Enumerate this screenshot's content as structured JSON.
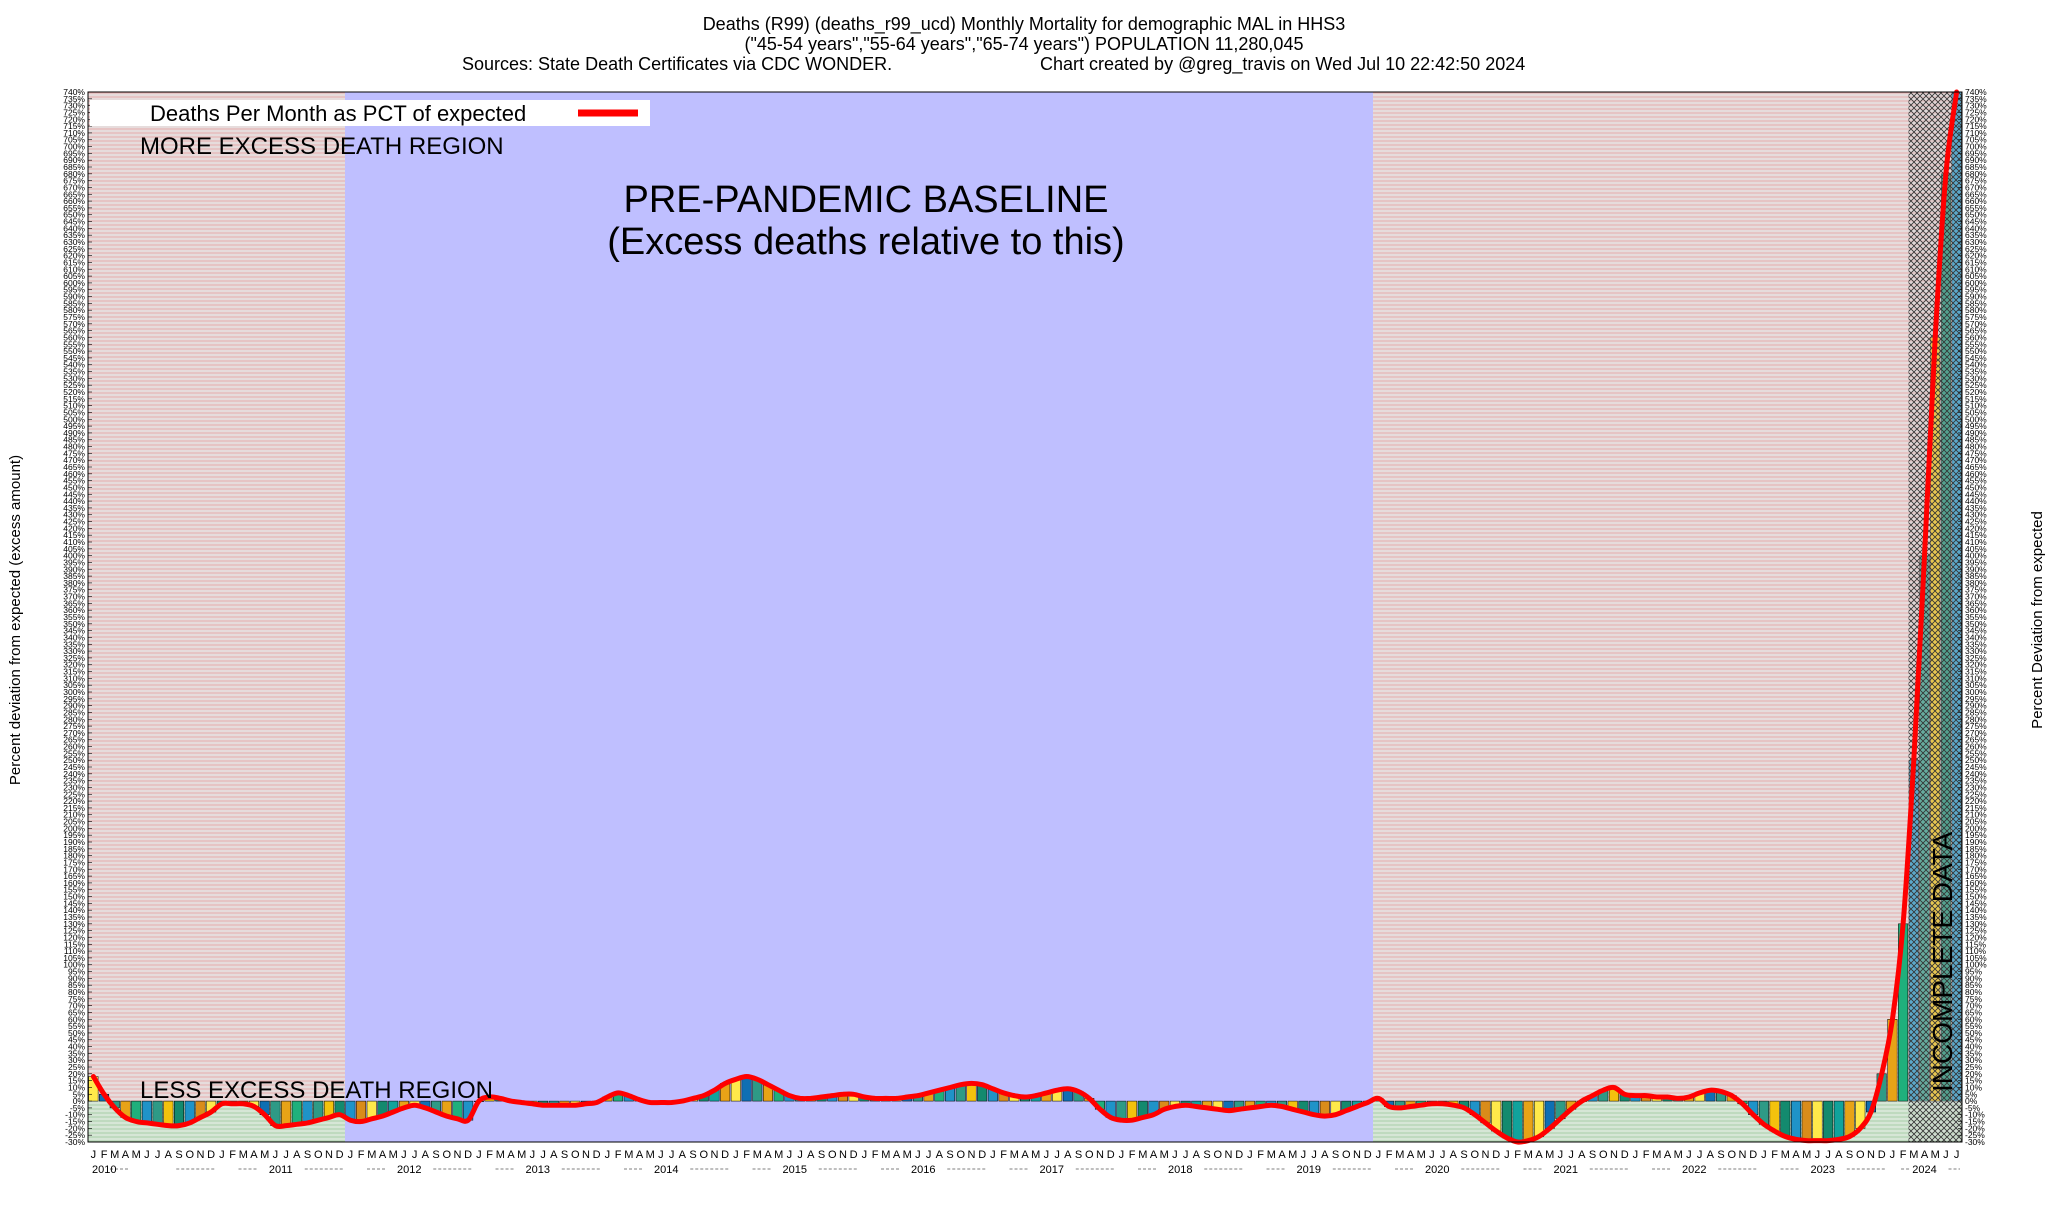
{
  "colors": {
    "excess_region": "#e3d6d6",
    "baseline_region": "#bfbfff",
    "less_region": "#cfe3cf",
    "line": "#ff0000",
    "bar_palette": [
      "#ffe94a",
      "#f4c20d",
      "#e8a317",
      "#d98c1a",
      "#2e9a86",
      "#11a39c",
      "#1f93c8",
      "#0f6fb3",
      "#138a6e",
      "#1fb07c"
    ]
  },
  "chart_data": {
    "type": "bar",
    "title": "Deaths (R99) (deaths_r99_ucd) Monthly Mortality for demographic MAL in HHS3",
    "subtitle": "(\"45-54 years\",\"55-64 years\",\"65-74 years\") POPULATION 11,280,045",
    "sources_line": "Sources: State Death Certificates via CDC WONDER.",
    "credit_line": "Chart created by @greg_travis on Wed Jul 10 22:42:50 2024",
    "ylabel_left": "Percent deviation from expected (excess amount)",
    "ylabel_right": "Percent Deviation from expected",
    "legend_label": "Deaths Per Month as PCT of expected",
    "legend_position": "top-left",
    "region_labels": {
      "more": "MORE EXCESS DEATH REGION",
      "less": "LESS EXCESS DEATH REGION",
      "baseline_1": "PRE-PANDEMIC BASELINE",
      "baseline_2": "(Excess deaths relative to this)",
      "incomplete": "INCOMPLETE DATA"
    },
    "ylim": [
      -30,
      740
    ],
    "ytick_step": 5,
    "ytick_suffix": "%",
    "baseline_range": [
      "2012-01",
      "2019-12"
    ],
    "incomplete_from": "2024-03",
    "month_letters": [
      "J",
      "F",
      "M",
      "A",
      "M",
      "J",
      "J",
      "A",
      "S",
      "O",
      "N",
      "D"
    ],
    "years": [
      "2010",
      "2011",
      "2012",
      "2013",
      "2014",
      "2015",
      "2016",
      "2017",
      "2018",
      "2019",
      "2020",
      "2021",
      "2022",
      "2023",
      "2024"
    ],
    "months_in_last_year": 7,
    "values": [
      18,
      5,
      -5,
      -12,
      -15,
      -16,
      -17,
      -18,
      -18,
      -16,
      -12,
      -8,
      -2,
      -2,
      -2,
      -4,
      -10,
      -18,
      -18,
      -17,
      -16,
      -14,
      -12,
      -10,
      -14,
      -15,
      -13,
      -11,
      -8,
      -5,
      -3,
      -5,
      -8,
      -11,
      -13,
      -14,
      0,
      3,
      2,
      0,
      -1,
      -2,
      -3,
      -3,
      -3,
      -3,
      -2,
      -1,
      3,
      6,
      4,
      1,
      -1,
      -1,
      -1,
      0,
      2,
      4,
      8,
      13,
      16,
      18,
      16,
      12,
      8,
      4,
      2,
      2,
      3,
      4,
      5,
      5,
      3,
      2,
      2,
      2,
      3,
      4,
      6,
      8,
      10,
      12,
      13,
      12,
      9,
      6,
      4,
      3,
      4,
      6,
      8,
      9,
      7,
      2,
      -6,
      -12,
      -14,
      -14,
      -12,
      -10,
      -6,
      -4,
      -3,
      -4,
      -5,
      -6,
      -7,
      -6,
      -5,
      -4,
      -3,
      -4,
      -6,
      -8,
      -10,
      -11,
      -10,
      -7,
      -4,
      -1,
      2,
      -4,
      -5,
      -4,
      -3,
      -2,
      -2,
      -3,
      -5,
      -10,
      -16,
      -22,
      -27,
      -30,
      -29,
      -26,
      -20,
      -13,
      -6,
      0,
      4,
      8,
      10,
      5,
      4,
      4,
      3,
      3,
      2,
      3,
      6,
      8,
      7,
      4,
      -2,
      -10,
      -17,
      -22,
      -26,
      -28,
      -29,
      -29,
      -29,
      -28,
      -26,
      -20,
      -8,
      20,
      60,
      130,
      250,
      400,
      560,
      680,
      740
    ],
    "line_values": [
      18,
      5,
      -5,
      -12,
      -15,
      -16,
      -17,
      -18,
      -18,
      -16,
      -12,
      -8,
      -2,
      -2,
      -2,
      -4,
      -10,
      -18,
      -18,
      -17,
      -16,
      -14,
      -12,
      -10,
      -14,
      -15,
      -13,
      -11,
      -8,
      -5,
      -3,
      -5,
      -8,
      -11,
      -13,
      -14,
      0,
      3,
      2,
      0,
      -1,
      -2,
      -3,
      -3,
      -3,
      -3,
      -2,
      -1,
      3,
      6,
      4,
      1,
      -1,
      -1,
      -1,
      0,
      2,
      4,
      8,
      13,
      16,
      18,
      16,
      12,
      8,
      4,
      2,
      2,
      3,
      4,
      5,
      5,
      3,
      2,
      2,
      2,
      3,
      4,
      6,
      8,
      10,
      12,
      13,
      12,
      9,
      6,
      4,
      3,
      4,
      6,
      8,
      9,
      7,
      2,
      -6,
      -12,
      -14,
      -14,
      -12,
      -10,
      -6,
      -4,
      -3,
      -4,
      -5,
      -6,
      -7,
      -6,
      -5,
      -4,
      -3,
      -4,
      -6,
      -8,
      -10,
      -11,
      -10,
      -7,
      -4,
      -1,
      2,
      -4,
      -5,
      -4,
      -3,
      -2,
      -2,
      -3,
      -5,
      -10,
      -16,
      -22,
      -27,
      -30,
      -29,
      -26,
      -20,
      -13,
      -6,
      0,
      4,
      8,
      10,
      5,
      4,
      4,
      3,
      3,
      2,
      3,
      6,
      8,
      7,
      4,
      -2,
      -10,
      -17,
      -22,
      -26,
      -28,
      -29,
      -29,
      -29,
      -28,
      -26,
      -20,
      -8,
      20,
      60,
      130,
      250,
      400,
      560,
      680,
      740
    ]
  }
}
